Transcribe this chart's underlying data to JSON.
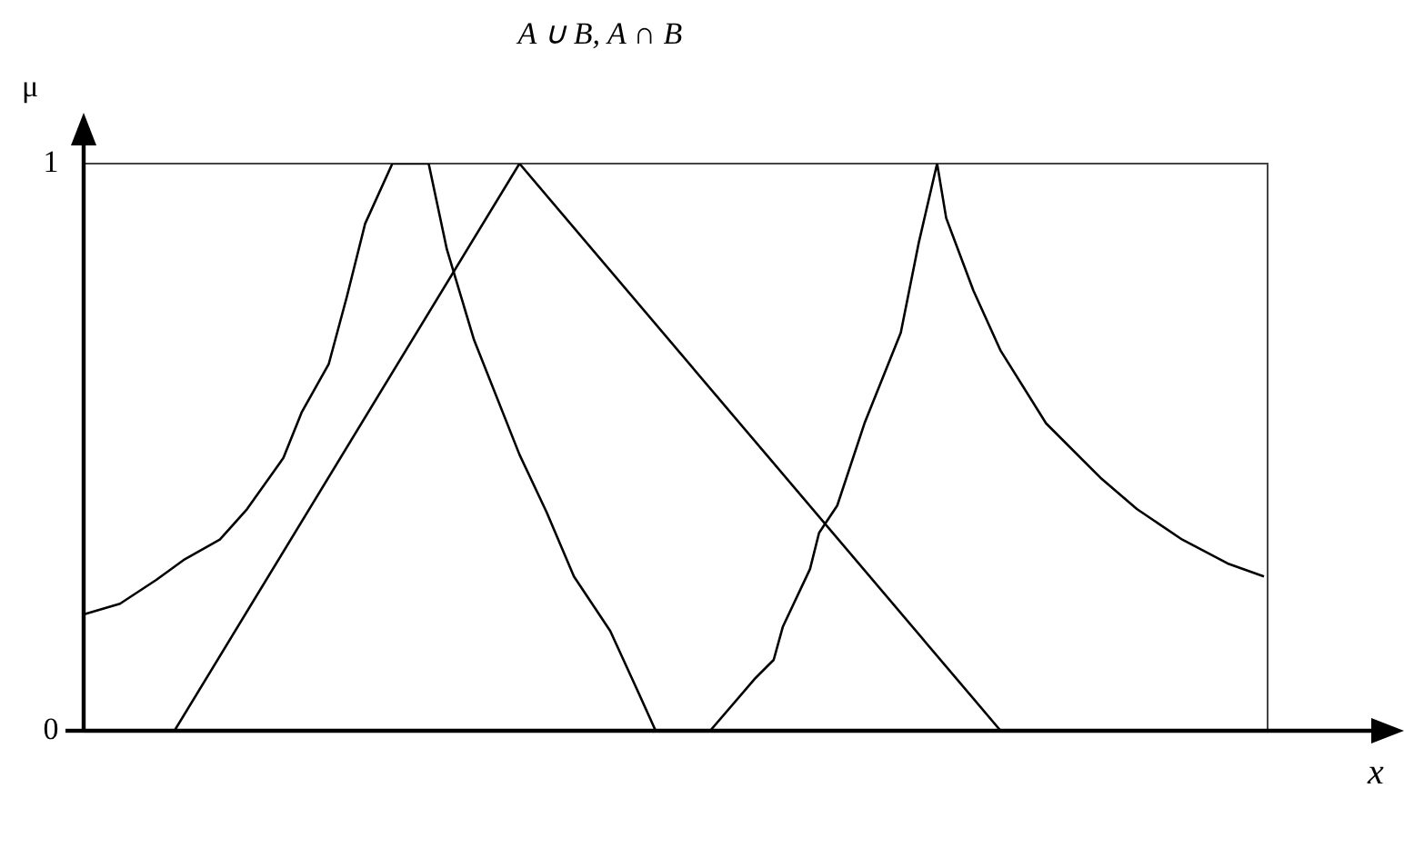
{
  "chart_data": {
    "type": "line",
    "title": "A ∪ B, A ∩ B",
    "xlabel": "x",
    "ylabel": "μ",
    "categories": [
      null,
      null,
      null,
      null,
      null,
      null,
      null,
      null,
      null,
      null,
      null,
      null,
      null,
      null,
      null,
      null,
      null,
      null,
      null,
      null,
      null,
      null,
      null,
      null,
      null,
      null,
      null,
      null,
      null,
      null,
      null,
      null,
      null,
      null,
      null,
      null,
      null,
      null,
      null,
      null,
      null,
      null,
      null,
      null,
      null,
      null,
      null,
      null,
      null,
      null,
      null,
      null,
      null,
      null,
      null,
      null,
      null,
      null,
      null,
      null,
      null,
      null,
      null,
      null,
      null,
      null,
      null,
      null,
      null,
      null,
      null,
      null,
      null,
      null,
      null,
      null,
      null,
      null,
      null,
      null,
      null,
      null,
      null,
      null,
      null,
      null,
      null,
      null,
      null,
      null,
      null,
      null,
      null,
      null,
      null,
      null,
      null,
      null,
      null,
      null,
      null,
      null,
      null,
      null,
      null,
      null,
      null,
      null,
      null,
      null,
      null,
      null,
      null,
      null,
      null,
      null,
      null,
      null,
      null,
      null,
      null,
      null,
      null,
      null,
      null,
      null,
      null,
      null,
      null,
      null,
      null
    ],
    "series": [
      {
        "color": "#000000",
        "values": [
          0.205,
          null,
          null,
          null,
          0.224,
          null,
          null,
          null,
          0.266,
          null,
          null,
          0.301,
          null,
          null,
          null,
          0.337,
          null,
          null,
          0.391,
          null,
          null,
          null,
          0.481,
          null,
          0.561,
          null,
          null,
          0.647,
          null,
          0.766,
          null,
          0.894,
          null,
          null,
          1,
          null,
          null,
          null,
          1,
          null,
          0.849,
          null,
          null,
          0.689,
          null,
          null,
          null,
          null,
          0.487,
          null,
          null,
          0.385,
          null,
          null,
          0.272,
          null,
          null,
          null,
          0.176,
          null,
          null,
          0.071,
          null,
          0,
          null,
          null,
          null,
          null,
          null,
          0,
          null,
          null,
          null,
          null,
          0.093,
          null,
          0.125,
          0.183,
          null,
          null,
          0.285,
          0.349,
          null,
          0.397,
          null,
          null,
          0.542,
          null,
          null,
          null,
          0.702,
          null,
          0.862,
          null,
          1,
          0.904,
          null,
          null,
          0.776,
          null,
          null,
          0.67,
          null,
          null,
          null,
          null,
          0.542,
          null,
          null,
          null,
          null,
          null,
          0.446,
          null,
          null,
          null,
          0.391,
          null,
          null,
          null,
          null,
          0.337,
          null,
          null,
          null,
          null,
          0.295,
          null,
          null,
          null,
          0.272
        ]
      },
      {
        "color": "#000000",
        "values": [
          null,
          null,
          null,
          null,
          null,
          null,
          null,
          null,
          null,
          null,
          0,
          null,
          null,
          null,
          null,
          null,
          null,
          null,
          null,
          null,
          null,
          null,
          null,
          null,
          null,
          null,
          null,
          null,
          null,
          null,
          null,
          null,
          null,
          null,
          null,
          null,
          null,
          null,
          null,
          null,
          null,
          null,
          null,
          null,
          null,
          null,
          null,
          null,
          1,
          null,
          null,
          null,
          null,
          null,
          null,
          null,
          null,
          null,
          null,
          null,
          null,
          null,
          null,
          null,
          null,
          null,
          null,
          null,
          null,
          null,
          null,
          null,
          null,
          null,
          null,
          null,
          null,
          null,
          null,
          null,
          null,
          null,
          null,
          null,
          null,
          null,
          null,
          null,
          null,
          null,
          null,
          null,
          null,
          null,
          null,
          null,
          null,
          null,
          null,
          null,
          null,
          0,
          null,
          null,
          null,
          null,
          null,
          null,
          null,
          null,
          null,
          null,
          null,
          null,
          null,
          null,
          null,
          null,
          null,
          null,
          null,
          null,
          null,
          null,
          null,
          null,
          null,
          null,
          null,
          null,
          null
        ]
      }
    ],
    "ylim": [
      0,
      1
    ],
    "yticks": [
      0,
      1
    ],
    "legend": false,
    "marker": "none",
    "line_style": "solid"
  }
}
